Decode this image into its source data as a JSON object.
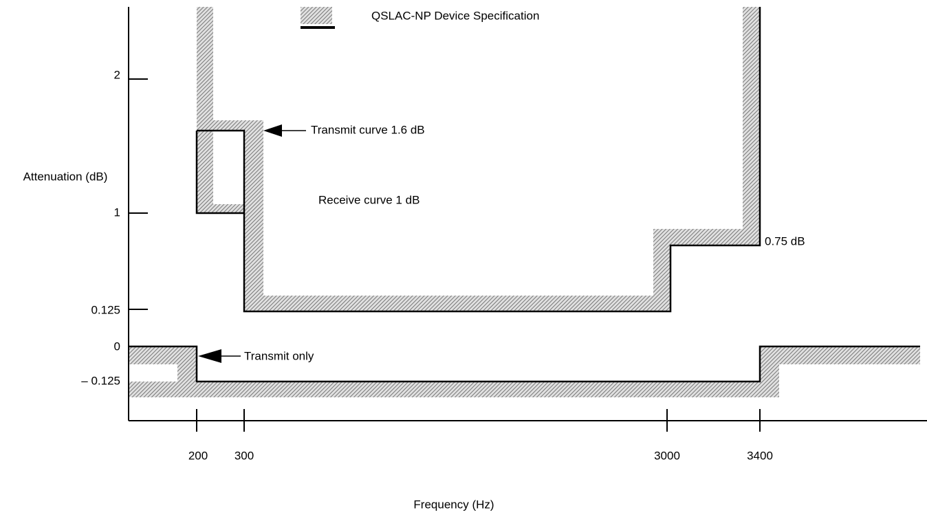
{
  "legend": {
    "label": "QSLAC-NP Device Specification"
  },
  "y_axis": {
    "label": "Attenuation (dB)",
    "ticks": [
      "2",
      "1",
      "0.125",
      "0",
      "– 0.125"
    ]
  },
  "x_axis": {
    "label": "Frequency (Hz)",
    "ticks": [
      "200",
      "300",
      "3000",
      "3400"
    ]
  },
  "annotations": {
    "transmit_curve": "Transmit curve 1.6 dB",
    "receive_curve": "Receive curve 1 dB",
    "upper_right": "0.75 dB",
    "transmit_only": "Transmit only"
  }
}
